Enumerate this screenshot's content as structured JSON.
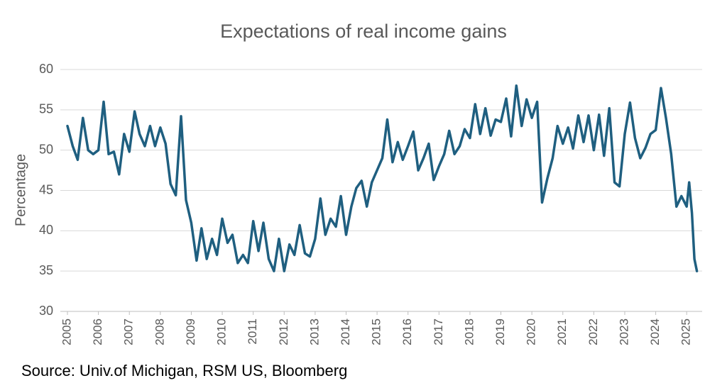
{
  "chart_data": {
    "type": "line",
    "title": "Expectations of real income gains",
    "y_label": "Percentage",
    "source": "Source: Univ.of Michigan, RSM US, Bloomberg",
    "x": [
      2005,
      2005.17,
      2005.33,
      2005.5,
      2005.67,
      2005.83,
      2006,
      2006.17,
      2006.33,
      2006.5,
      2006.67,
      2006.83,
      2007,
      2007.17,
      2007.33,
      2007.5,
      2007.67,
      2007.83,
      2008,
      2008.17,
      2008.33,
      2008.5,
      2008.67,
      2008.83,
      2009,
      2009.17,
      2009.33,
      2009.5,
      2009.67,
      2009.83,
      2010,
      2010.17,
      2010.33,
      2010.5,
      2010.67,
      2010.83,
      2011,
      2011.17,
      2011.33,
      2011.5,
      2011.67,
      2011.83,
      2012,
      2012.17,
      2012.33,
      2012.5,
      2012.67,
      2012.83,
      2013,
      2013.17,
      2013.33,
      2013.5,
      2013.67,
      2013.83,
      2014,
      2014.17,
      2014.33,
      2014.5,
      2014.67,
      2014.83,
      2015,
      2015.17,
      2015.33,
      2015.5,
      2015.67,
      2015.83,
      2016,
      2016.17,
      2016.33,
      2016.5,
      2016.67,
      2016.83,
      2017,
      2017.17,
      2017.33,
      2017.5,
      2017.67,
      2017.83,
      2018,
      2018.17,
      2018.33,
      2018.5,
      2018.67,
      2018.83,
      2019,
      2019.17,
      2019.33,
      2019.5,
      2019.67,
      2019.83,
      2020,
      2020.17,
      2020.33,
      2020.5,
      2020.67,
      2020.83,
      2021,
      2021.17,
      2021.33,
      2021.5,
      2021.67,
      2021.83,
      2022,
      2022.17,
      2022.33,
      2022.5,
      2022.67,
      2022.83,
      2023,
      2023.17,
      2023.33,
      2023.5,
      2023.67,
      2023.83,
      2024,
      2024.17,
      2024.33,
      2024.5,
      2024.67,
      2024.83,
      2025,
      2025.08,
      2025.17,
      2025.25,
      2025.33
    ],
    "series": [
      {
        "name": "Expectations of real income gains",
        "color": "#1f5f80",
        "values": [
          53,
          50.5,
          48.8,
          54,
          50,
          49.5,
          50,
          56,
          49.5,
          49.8,
          47,
          52,
          49.8,
          54.8,
          52,
          50.5,
          53,
          50.5,
          52.8,
          50.8,
          45.8,
          44.4,
          54.2,
          43.8,
          41,
          36.3,
          40.3,
          36.5,
          39,
          37,
          41.5,
          38.5,
          39.5,
          36,
          37,
          36,
          41.2,
          37.5,
          41,
          36.5,
          35,
          39,
          35,
          38.3,
          37,
          40.7,
          37.2,
          36.8,
          39,
          44,
          39.5,
          41.5,
          40.5,
          44.3,
          39.5,
          43,
          45.3,
          46.2,
          43,
          46,
          47.5,
          49,
          53.8,
          48.5,
          51,
          48.8,
          50.5,
          52.3,
          47.5,
          49,
          50.8,
          46.3,
          48,
          49.5,
          52.4,
          49.5,
          50.5,
          52.6,
          51.5,
          55.7,
          52,
          55.2,
          51.8,
          53.8,
          53.5,
          56.4,
          51.7,
          58,
          53,
          56.3,
          54,
          56,
          43.5,
          46.5,
          49,
          53,
          50.8,
          52.8,
          50.2,
          54.3,
          51,
          54.3,
          50,
          54.4,
          49.3,
          55.2,
          46,
          45.5,
          52,
          55.9,
          51.5,
          49,
          50.3,
          52,
          52.5,
          57.7,
          54,
          49.5,
          43,
          44.3,
          43,
          46,
          42.2,
          36.5,
          35
        ]
      }
    ],
    "xlim": [
      2005,
      2025.5
    ],
    "xticks": [
      2005,
      2006,
      2007,
      2008,
      2009,
      2010,
      2011,
      2012,
      2013,
      2014,
      2015,
      2016,
      2017,
      2018,
      2019,
      2020,
      2021,
      2022,
      2023,
      2024,
      2025
    ],
    "ylim": [
      30,
      60
    ],
    "yticks": [
      30,
      35,
      40,
      45,
      50,
      55,
      60
    ],
    "grid": true
  }
}
